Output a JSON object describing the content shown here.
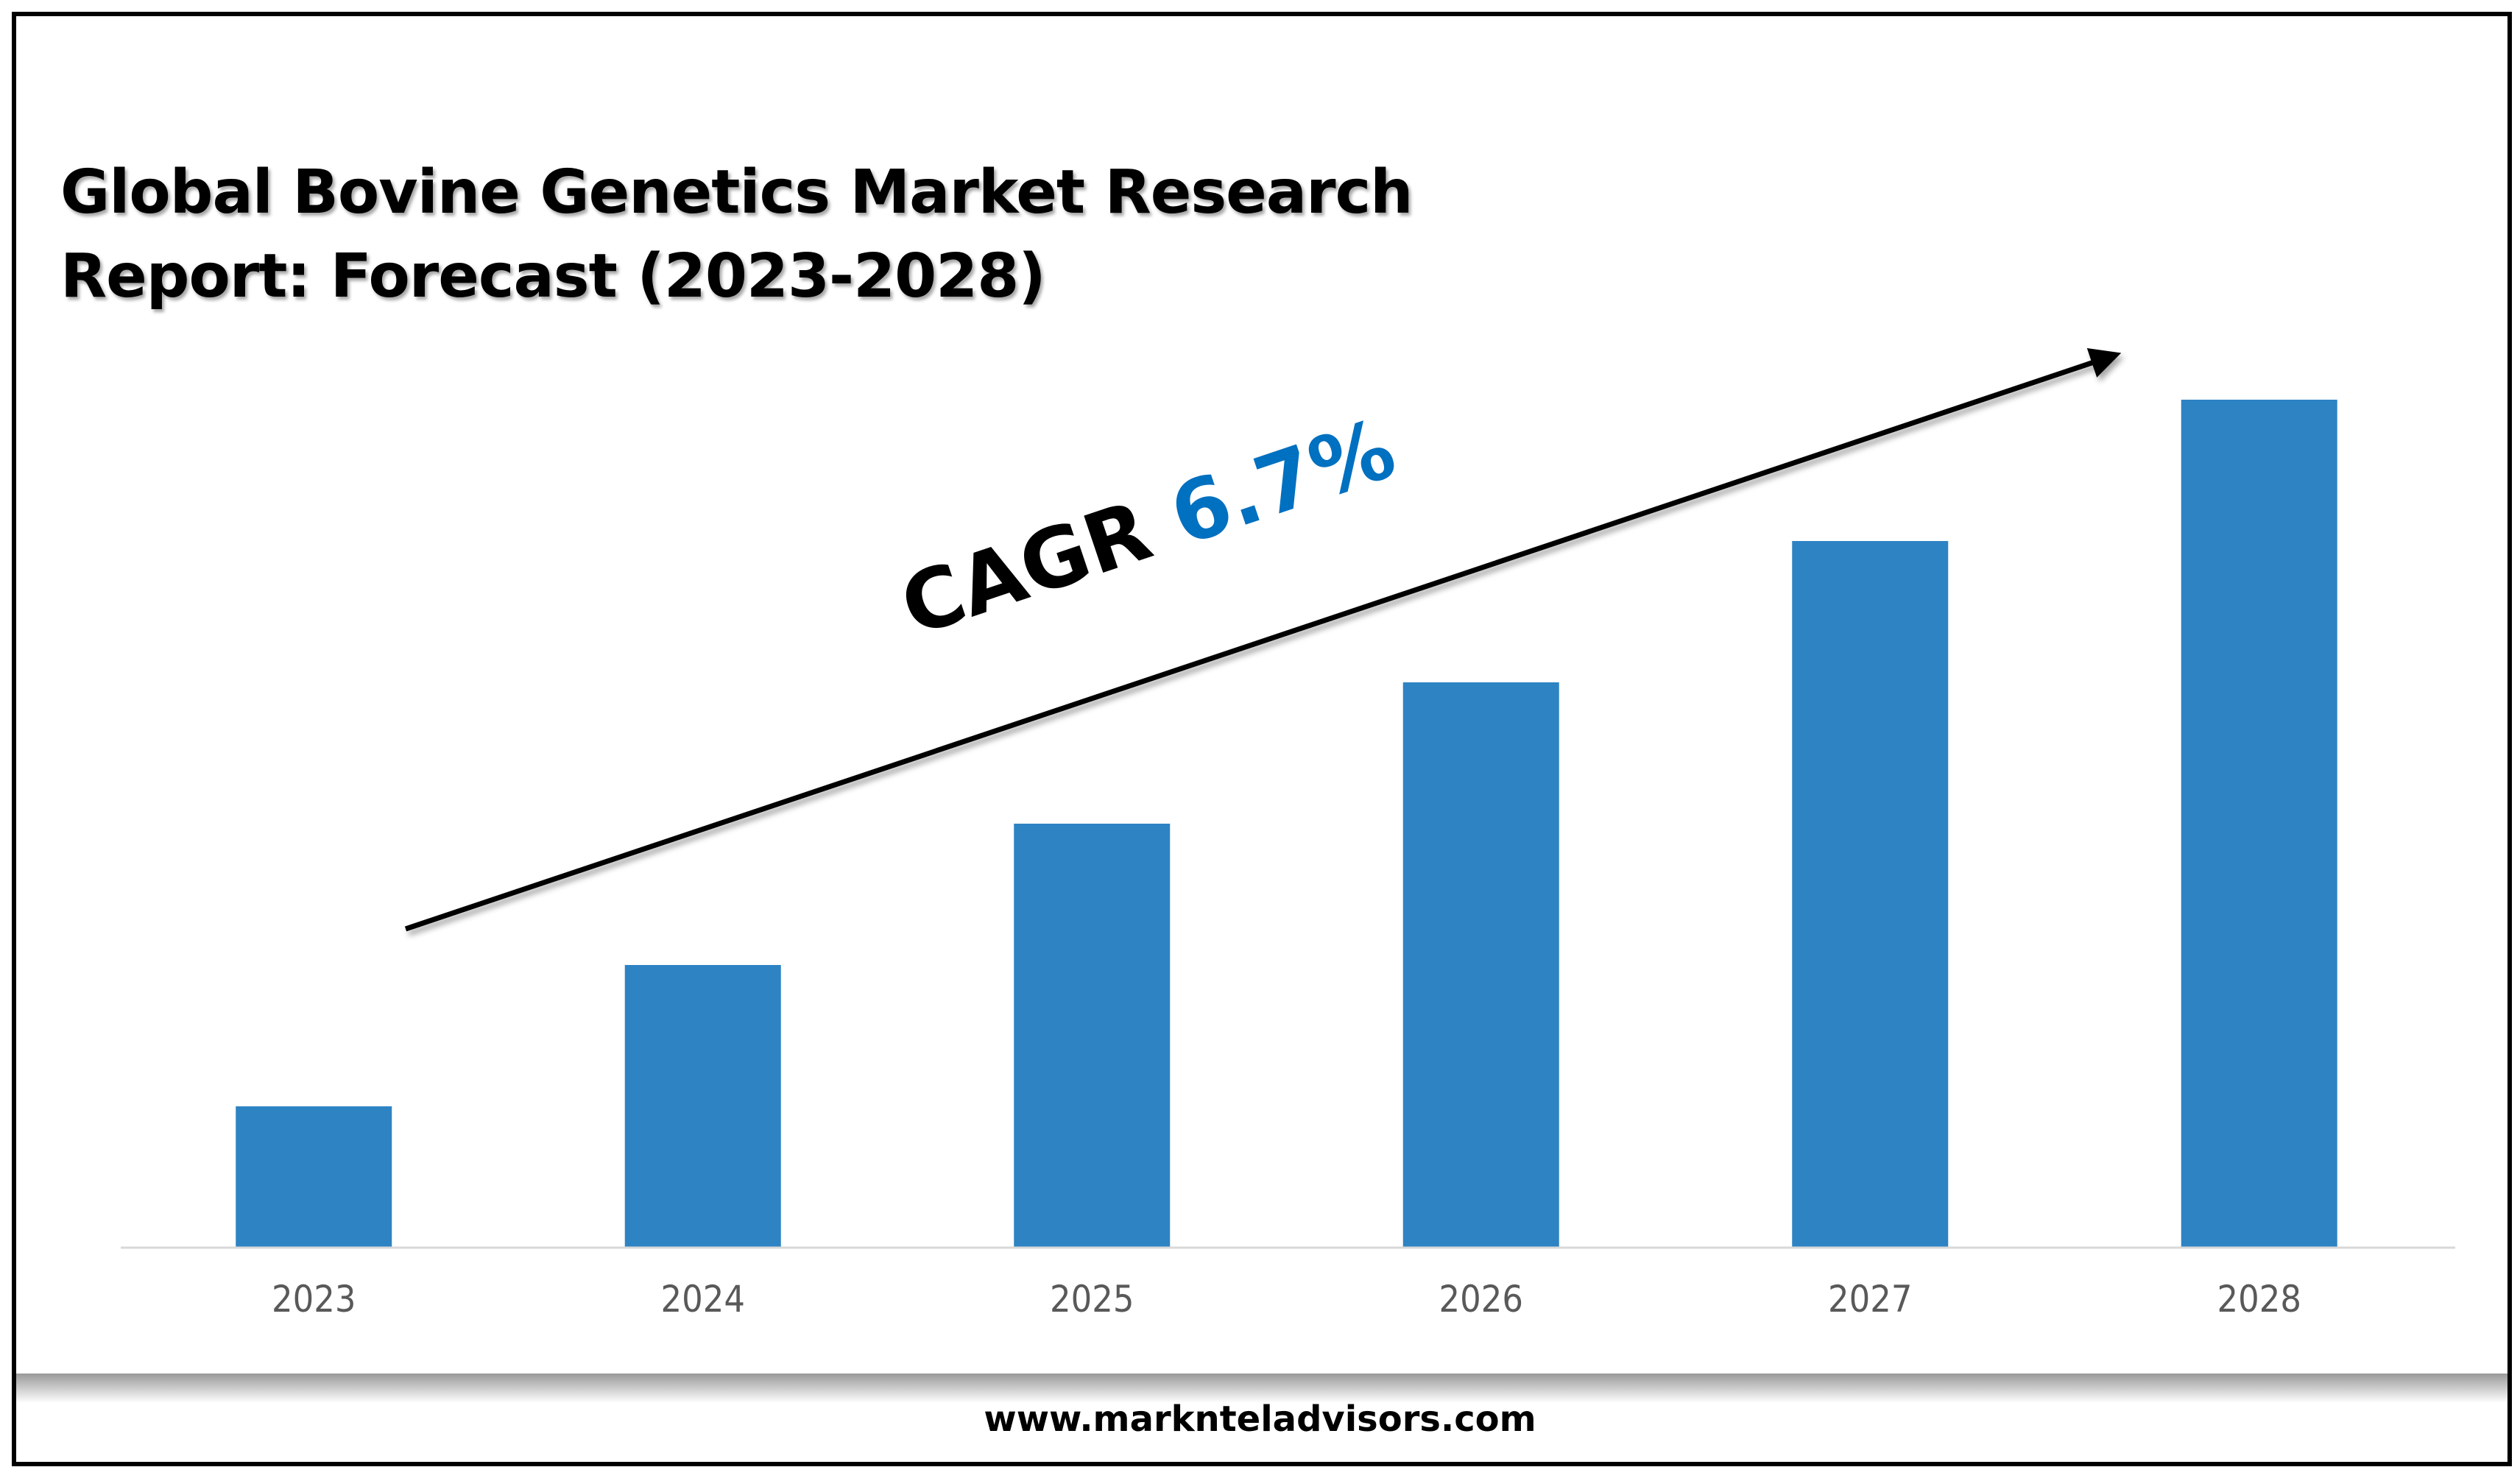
{
  "title_lines": [
    "Global Bovine Genetics Market Research",
    "Report: Forecast (2023-2028)"
  ],
  "footer": "www.marknteladvisors.com",
  "annotation": {
    "label": "CAGR",
    "value": "6.7%"
  },
  "colors": {
    "bar": "#2e83c3",
    "cagr_value": "#0070c0",
    "axis": "#d9d9d9"
  },
  "chart_data": {
    "type": "bar",
    "title": "Global Bovine Genetics Market Research Report: Forecast (2023-2028)",
    "categories": [
      "2023",
      "2024",
      "2025",
      "2026",
      "2027",
      "2028"
    ],
    "values": [
      1,
      2,
      3,
      4,
      5,
      6
    ],
    "xlabel": "",
    "ylabel": "",
    "y_axis_shown": false,
    "grid": false,
    "legend": "none",
    "annotations": [
      "CAGR 6.7%"
    ]
  }
}
